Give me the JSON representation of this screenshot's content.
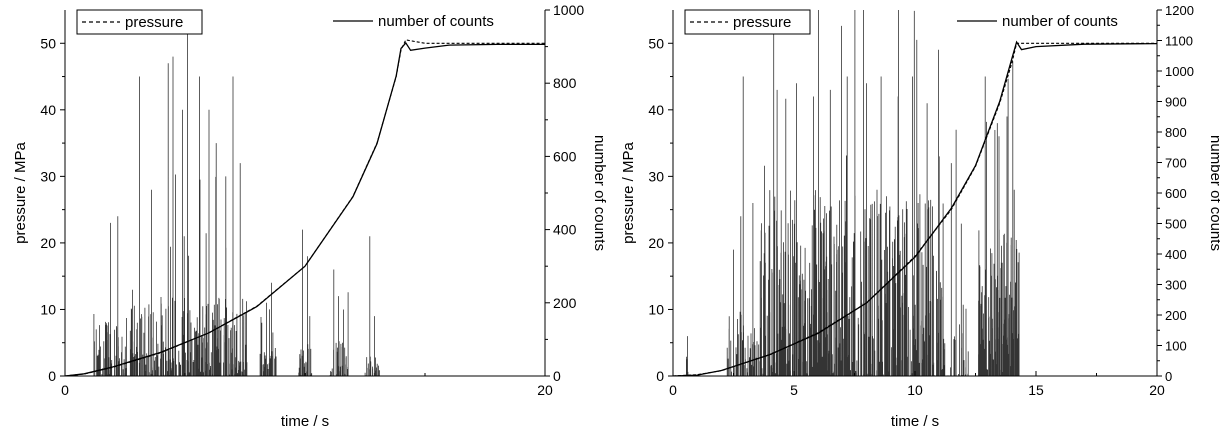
{
  "chart_data": [
    {
      "type": "line",
      "panel": "left",
      "xlabel": "time / s",
      "ylabel_left": "pressure / MPa",
      "ylabel_right": "number of counts",
      "xlim": [
        0,
        20
      ],
      "ylim_left": [
        0,
        55
      ],
      "ylim_right": [
        0,
        1000
      ],
      "xticks": [
        0,
        20
      ],
      "yticks_left": [
        0,
        10,
        20,
        30,
        40,
        50
      ],
      "yticks_right": [
        0,
        200,
        400,
        600,
        800,
        1000
      ],
      "grid": false,
      "legend": [
        {
          "label": "pressure",
          "style": "dashed",
          "position": "top-left"
        },
        {
          "label": "number of counts",
          "style": "solid",
          "position": "top-right"
        }
      ],
      "series": [
        {
          "name": "pressure",
          "axis": "left",
          "style": "dashed",
          "x": [
            0,
            0.8,
            2,
            4,
            6,
            8,
            10,
            12,
            13,
            13.8,
            14.0,
            14.2,
            15,
            16,
            18,
            20
          ],
          "y": [
            0,
            0.3,
            1.3,
            3.5,
            6.5,
            10.5,
            16.5,
            27,
            35,
            45,
            49,
            50.5,
            50,
            50,
            50,
            50
          ]
        },
        {
          "name": "number of counts",
          "axis": "right",
          "style": "solid",
          "x": [
            0,
            0.8,
            2,
            4,
            6,
            8,
            10,
            12,
            13,
            13.8,
            14.0,
            14.2,
            14.4,
            15,
            16,
            18,
            20
          ],
          "y": [
            0,
            6,
            25,
            65,
            118,
            190,
            300,
            490,
            635,
            820,
            895,
            910,
            890,
            896,
            904,
            906,
            906
          ]
        },
        {
          "name": "pressure",
          "axis": "left",
          "style": "spikes",
          "clusters": [
            {
              "x0": 1.2,
              "x1": 2.7,
              "n": 70,
              "amp": 9,
              "peaks": [
                [
                  1.9,
                  23
                ],
                [
                  2.2,
                  24
                ],
                [
                  1.3,
                  7
                ]
              ]
            },
            {
              "x0": 2.7,
              "x1": 7.6,
              "n": 320,
              "amp": 12,
              "peaks": [
                [
                  3.1,
                  45
                ],
                [
                  4.3,
                  47
                ],
                [
                  4.5,
                  48
                ],
                [
                  5.1,
                  52
                ],
                [
                  5.6,
                  45
                ],
                [
                  6.0,
                  40
                ],
                [
                  6.3,
                  35
                ],
                [
                  7.0,
                  45
                ],
                [
                  7.3,
                  32
                ],
                [
                  3.6,
                  28
                ],
                [
                  4.9,
                  40
                ],
                [
                  6.7,
                  30
                ]
              ]
            },
            {
              "x0": 8.1,
              "x1": 8.8,
              "n": 35,
              "amp": 5,
              "peaks": [
                [
                  8.4,
                  11
                ],
                [
                  8.6,
                  14
                ],
                [
                  8.2,
                  8
                ]
              ]
            },
            {
              "x0": 9.7,
              "x1": 10.3,
              "n": 35,
              "amp": 5,
              "peaks": [
                [
                  9.9,
                  22
                ],
                [
                  10.1,
                  18
                ],
                [
                  10.2,
                  9
                ]
              ]
            },
            {
              "x0": 11.0,
              "x1": 11.8,
              "n": 45,
              "amp": 5,
              "peaks": [
                [
                  11.2,
                  16
                ],
                [
                  11.4,
                  12
                ],
                [
                  11.6,
                  10
                ]
              ]
            },
            {
              "x0": 12.5,
              "x1": 13.1,
              "n": 30,
              "amp": 3,
              "peaks": [
                [
                  12.7,
                  21
                ],
                [
                  12.9,
                  9
                ]
              ]
            }
          ]
        }
      ]
    },
    {
      "type": "line",
      "panel": "right",
      "xlabel": "time / s",
      "ylabel_left": "pressure / MPa",
      "ylabel_right": "number of counts",
      "xlim": [
        0,
        20
      ],
      "ylim_left": [
        0,
        55
      ],
      "ylim_right": [
        0,
        1200
      ],
      "xticks": [
        0,
        5,
        10,
        15,
        20
      ],
      "yticks_left": [
        0,
        10,
        20,
        30,
        40,
        50
      ],
      "yticks_right": [
        0,
        100,
        200,
        300,
        400,
        500,
        600,
        700,
        800,
        900,
        1000,
        1100,
        1200
      ],
      "grid": false,
      "legend": [
        {
          "label": "pressure",
          "style": "dashed",
          "position": "top-left"
        },
        {
          "label": "number of counts",
          "style": "solid",
          "position": "top-right"
        }
      ],
      "series": [
        {
          "name": "pressure",
          "axis": "left",
          "style": "dashed",
          "x": [
            0,
            1,
            2,
            4,
            6,
            8,
            10,
            11.5,
            12.5,
            13.5,
            14.0,
            14.2,
            15,
            17,
            20
          ],
          "y": [
            0,
            0.2,
            0.8,
            3.2,
            6.5,
            11,
            18,
            25,
            31.5,
            41,
            47,
            50,
            50,
            50,
            50
          ]
        },
        {
          "name": "number of counts",
          "axis": "right",
          "style": "solid",
          "x": [
            0,
            1,
            2,
            4,
            6,
            8,
            10,
            11.5,
            12.5,
            13.5,
            14.0,
            14.2,
            14.4,
            15,
            17,
            20
          ],
          "y": [
            0,
            3,
            18,
            70,
            140,
            240,
            390,
            550,
            690,
            900,
            1040,
            1095,
            1070,
            1080,
            1088,
            1090
          ]
        },
        {
          "name": "pressure",
          "axis": "left",
          "style": "spikes",
          "clusters": [
            {
              "x0": 0.4,
              "x1": 0.7,
              "n": 3,
              "amp": 3,
              "peaks": [
                [
                  0.6,
                  6
                ]
              ]
            },
            {
              "x0": 2.2,
              "x1": 3.6,
              "n": 60,
              "amp": 10,
              "peaks": [
                [
                  2.9,
                  45
                ],
                [
                  2.8,
                  24
                ],
                [
                  3.3,
                  26
                ],
                [
                  2.5,
                  19
                ]
              ]
            },
            {
              "x0": 3.6,
              "x1": 11.2,
              "n": 560,
              "amp": 28,
              "peaks": [
                [
                  4.3,
                  43
                ],
                [
                  5.1,
                  44
                ],
                [
                  5.8,
                  42
                ],
                [
                  6.5,
                  43
                ],
                [
                  7.2,
                  45
                ],
                [
                  8.0,
                  44
                ],
                [
                  8.6,
                  45
                ],
                [
                  9.3,
                  42
                ],
                [
                  9.9,
                  45
                ],
                [
                  10.5,
                  41
                ],
                [
                  11.0,
                  33
                ]
              ]
            },
            {
              "x0": 11.2,
              "x1": 12.2,
              "n": 25,
              "amp": 15,
              "peaks": [
                [
                  11.7,
                  37
                ],
                [
                  11.5,
                  32
                ]
              ]
            },
            {
              "x0": 12.6,
              "x1": 14.3,
              "n": 180,
              "amp": 22,
              "peaks": [
                [
                  12.9,
                  45
                ],
                [
                  13.4,
                  38
                ],
                [
                  13.8,
                  39
                ],
                [
                  14.1,
                  28
                ]
              ]
            }
          ]
        }
      ]
    }
  ]
}
